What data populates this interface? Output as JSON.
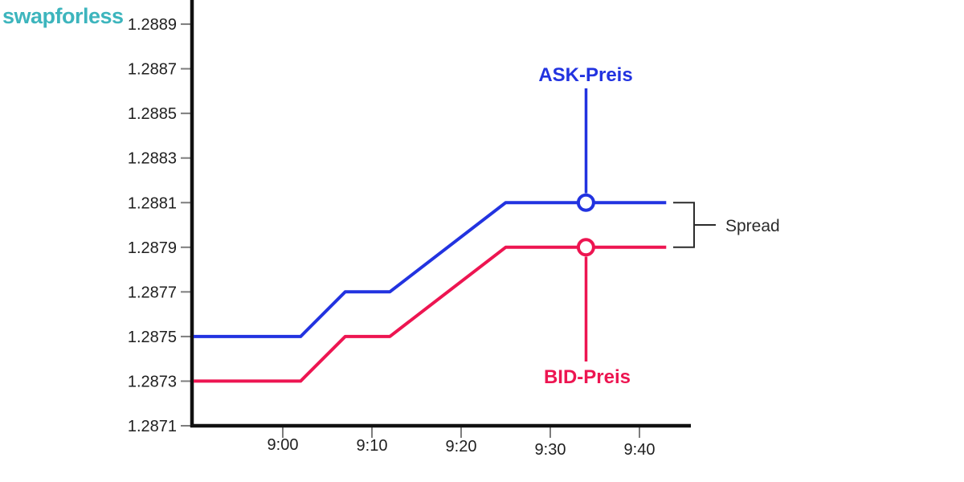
{
  "logo": {
    "text": "swapforless"
  },
  "chart_data": {
    "type": "line",
    "title": "",
    "xlabel": "",
    "ylabel": "",
    "grid": false,
    "legend_position": "none (direct pointer-line labels on chart)",
    "x_axis": {
      "tick_labels": [
        "9:00",
        "9:10",
        "9:20",
        "9:30",
        "9:40"
      ],
      "visible_range": [
        "8:50",
        "9:43"
      ]
    },
    "y_axis": {
      "tick_labels": [
        "1.2889",
        "1.2887",
        "1.2885",
        "1.2883",
        "1.2881",
        "1.2879",
        "1.2877",
        "1.2875",
        "1.2873",
        "1.2871"
      ],
      "range": [
        1.2871,
        1.289
      ]
    },
    "series": [
      {
        "name": "ASK-Preis",
        "color": "#2233e0",
        "points": [
          {
            "t": "8:50",
            "price": 1.2875
          },
          {
            "t": "9:02",
            "price": 1.2875
          },
          {
            "t": "9:07",
            "price": 1.2877
          },
          {
            "t": "9:12",
            "price": 1.2877
          },
          {
            "t": "9:25",
            "price": 1.2881
          },
          {
            "t": "9:43",
            "price": 1.2881
          }
        ],
        "marker": {
          "t": "9:34",
          "price": 1.2881
        }
      },
      {
        "name": "BID-Preis",
        "color": "#ed1551",
        "points": [
          {
            "t": "8:50",
            "price": 1.2873
          },
          {
            "t": "9:02",
            "price": 1.2873
          },
          {
            "t": "9:07",
            "price": 1.2875
          },
          {
            "t": "9:12",
            "price": 1.2875
          },
          {
            "t": "9:25",
            "price": 1.2879
          },
          {
            "t": "9:43",
            "price": 1.2879
          }
        ],
        "marker": {
          "t": "9:34",
          "price": 1.2879
        }
      }
    ],
    "annotations": {
      "ask_label": "ASK-Preis",
      "bid_label": "BID-Preis",
      "spread_label": "Spread"
    }
  },
  "colors": {
    "logo": "#3db5bd",
    "ask": "#2233e0",
    "bid": "#ed1551",
    "axis": "#111111",
    "tick": "#7d7d7d",
    "tick_text": "#1f1f1f",
    "annotation": "#2b2b2b",
    "background": "#ffffff"
  }
}
